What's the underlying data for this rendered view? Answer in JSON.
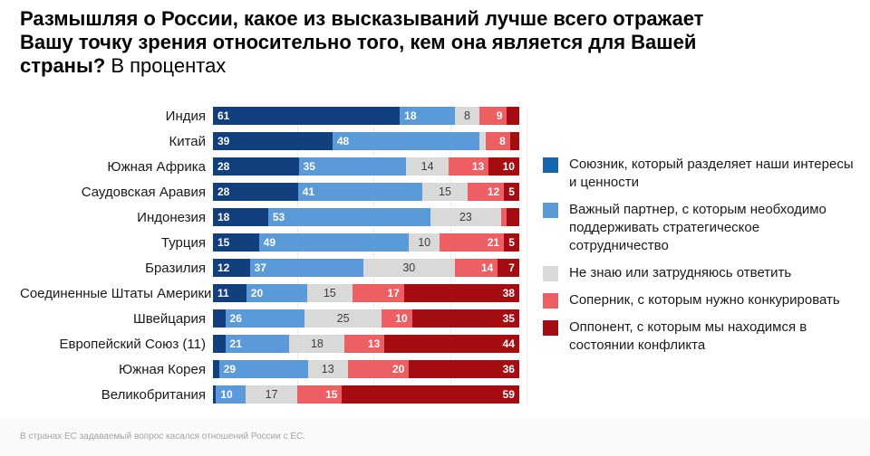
{
  "title": {
    "line1": "Размышляя о России, какое из высказываний лучше всего отражает",
    "line2": "Вашу точку зрения относительно того, кем она является для Вашей",
    "line3_bold": "страны?",
    "line3_normal": "В процентах"
  },
  "footer": "В странах ЕС задаваемый вопрос касался отношений России с ЕС.",
  "chart_data": {
    "type": "bar",
    "orientation": "horizontal",
    "stacked": true,
    "unit": "percent",
    "xlim": [
      0,
      100
    ],
    "gridlines_percent": [
      25,
      50,
      75,
      100
    ],
    "legend_position": "right",
    "label_min_value": 5,
    "series_align": [
      "left",
      "left",
      "center",
      "right",
      "right"
    ],
    "categories": [
      "Индия",
      "Китай",
      "Южная Африка",
      "Саудовская Аравия",
      "Индонезия",
      "Турция",
      "Бразилия",
      "Соединенные Штаты Америки",
      "Швейцария",
      "Европейский Союз (11)",
      "Южная Корея",
      "Великобритания"
    ],
    "series": [
      {
        "name": "Союзник, который разделяет наши интересы и ценности",
        "color": "#123f7d",
        "legend_color": "#1767ae",
        "values": [
          61,
          39,
          28,
          28,
          18,
          15,
          12,
          11,
          4,
          4,
          2,
          1
        ]
      },
      {
        "name": "Важный партнер, с которым необходимо поддерживать стратегическое сотрудничество",
        "color": "#5b9ad8",
        "values": [
          18,
          48,
          35,
          41,
          53,
          49,
          37,
          20,
          26,
          21,
          29,
          10
        ]
      },
      {
        "name": "Не знаю или затрудняюсь ответить",
        "color": "#d9d9d9",
        "values": [
          8,
          2,
          14,
          15,
          23,
          10,
          30,
          15,
          25,
          18,
          13,
          17
        ]
      },
      {
        "name": "Соперник, с которым нужно конкурировать",
        "color": "#ee5f63",
        "values": [
          9,
          8,
          13,
          12,
          2,
          21,
          14,
          17,
          10,
          13,
          20,
          15
        ]
      },
      {
        "name": "Оппонент, с которым мы находимся в состоянии конфликта",
        "color": "#a60d12",
        "values": [
          4,
          3,
          10,
          5,
          4,
          5,
          7,
          38,
          35,
          44,
          36,
          59
        ]
      }
    ]
  }
}
